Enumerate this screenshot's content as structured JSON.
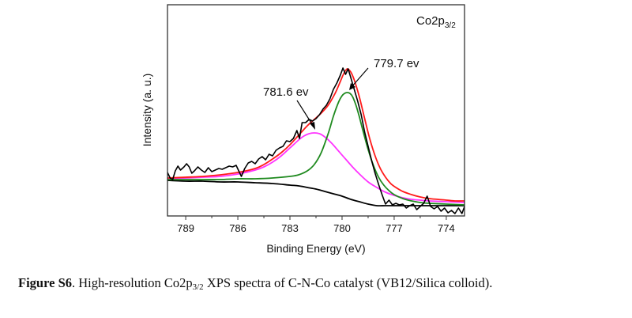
{
  "chart_data": {
    "type": "line",
    "title": "",
    "xlabel": "Binding Energy (eV)",
    "ylabel": "Intensity (a. u.)",
    "xlim": [
      790.05,
      772.95
    ],
    "x_reversed": true,
    "ylim": [
      0,
      267
    ],
    "x_ticks": [
      789,
      786,
      783,
      780,
      777,
      774
    ],
    "x_minor_ticks": [
      787.5,
      784.5,
      781.5,
      778.5,
      775.5
    ],
    "y_ticks_labeled": false,
    "grid": false,
    "legend": null,
    "panel_label": {
      "main": "Co2p",
      "sub": "3/2",
      "position": "top-right"
    },
    "annotations": [
      {
        "text": "781.6 ev",
        "x": 781.6,
        "target": "fit-peak-1"
      },
      {
        "text": "779.7 ev",
        "x": 779.7,
        "target": "fit-peak-2"
      }
    ],
    "series": [
      {
        "name": "experimental",
        "color": "#000000",
        "x": [
          790.05,
          789.9,
          789.75,
          789.6,
          789.45,
          789.3,
          789.1,
          788.95,
          788.8,
          788.65,
          788.5,
          788.3,
          788.1,
          787.9,
          787.7,
          787.5,
          787.3,
          787.1,
          786.9,
          786.7,
          786.5,
          786.3,
          786.1,
          785.95,
          785.8,
          785.6,
          785.4,
          785.2,
          785.0,
          784.8,
          784.6,
          784.4,
          784.2,
          784.0,
          783.8,
          783.6,
          783.4,
          783.2,
          783.0,
          782.8,
          782.6,
          782.45,
          782.3,
          782.1,
          781.9,
          781.7,
          781.5,
          781.3,
          781.1,
          780.9,
          780.7,
          780.5,
          780.3,
          780.1,
          779.95,
          779.8,
          779.65,
          779.5,
          779.3,
          779.1,
          778.9,
          778.7,
          778.5,
          778.3,
          778.1,
          777.9,
          777.7,
          777.5,
          777.3,
          777.1,
          776.9,
          776.7,
          776.5,
          776.3,
          776.1,
          775.9,
          775.7,
          775.5,
          775.3,
          775.1,
          774.9,
          774.7,
          774.5,
          774.3,
          774.1,
          773.9,
          773.7,
          773.5,
          773.3,
          773.1,
          772.95
        ],
        "y": [
          55,
          48,
          46,
          57,
          63,
          58,
          62,
          66,
          62,
          54,
          57,
          62,
          58,
          55,
          61,
          56,
          58,
          60,
          59,
          61,
          63,
          62,
          64,
          57,
          50,
          60,
          67,
          69,
          66,
          72,
          75,
          71,
          78,
          76,
          83,
          86,
          88,
          95,
          94,
          98,
          108,
          98,
          118,
          118,
          122,
          120,
          123,
          128,
          135,
          140,
          148,
          160,
          168,
          178,
          187,
          179,
          186,
          175,
          160,
          145,
          128,
          106,
          88,
          70,
          54,
          40,
          27,
          15,
          20,
          14,
          16,
          14,
          15,
          10,
          13,
          15,
          8,
          12,
          16,
          25,
          12,
          9,
          12,
          6,
          10,
          4,
          7,
          3,
          10,
          3,
          12
        ]
      },
      {
        "name": "fit-envelope",
        "color": "#ff1a1a",
        "x": [
          790.05,
          789,
          788,
          787,
          786,
          785,
          784.5,
          784,
          783.5,
          783,
          782.5,
          782,
          781.6,
          781.2,
          780.8,
          780.4,
          780.1,
          779.9,
          779.7,
          779.5,
          779.3,
          779.0,
          778.7,
          778.4,
          778.1,
          777.8,
          777.5,
          777.2,
          776.9,
          776.5,
          776,
          775.5,
          775,
          774.5,
          774,
          773.5,
          772.95
        ],
        "y": [
          48,
          49,
          50,
          52,
          55,
          60,
          65,
          72,
          80,
          90,
          102,
          114,
          122,
          130,
          140,
          155,
          170,
          180,
          186,
          182,
          172,
          150,
          123,
          97,
          76,
          60,
          49,
          41,
          36,
          31,
          27,
          24,
          22,
          21,
          20,
          19,
          19
        ]
      },
      {
        "name": "fit-peak-1",
        "center_eV": 781.6,
        "color": "#ff33ff",
        "x": [
          790.05,
          789,
          788,
          787,
          786,
          785,
          784.5,
          784,
          783.5,
          783,
          782.5,
          782.2,
          781.9,
          781.6,
          781.3,
          781.0,
          780.6,
          780.2,
          779.8,
          779.4,
          779.0,
          778.5,
          778.0,
          777.5,
          777.0,
          776.5,
          776,
          775.5,
          775,
          774,
          772.95
        ],
        "y": [
          47,
          48,
          49,
          50,
          53,
          58,
          62,
          68,
          76,
          86,
          96,
          101,
          104,
          105,
          104,
          100,
          92,
          82,
          72,
          62,
          53,
          43,
          36,
          30,
          26,
          23,
          21,
          20,
          19,
          18,
          17
        ]
      },
      {
        "name": "fit-peak-2",
        "center_eV": 779.7,
        "color": "#1f8a1f",
        "x": [
          790.05,
          789,
          788,
          787,
          786,
          785,
          784,
          783,
          782.5,
          782,
          781.6,
          781.2,
          780.8,
          780.5,
          780.2,
          780.0,
          779.85,
          779.7,
          779.55,
          779.4,
          779.2,
          779.0,
          778.8,
          778.5,
          778.2,
          777.9,
          777.6,
          777.3,
          777,
          776.5,
          776,
          775.5,
          775,
          774,
          772.95
        ],
        "y": [
          46,
          46,
          46,
          46,
          47,
          47,
          48,
          50,
          52,
          57,
          65,
          80,
          104,
          126,
          144,
          152,
          155,
          156,
          155,
          151,
          140,
          125,
          108,
          84,
          64,
          49,
          39,
          32,
          27,
          22,
          19,
          17,
          16,
          15,
          14
        ]
      },
      {
        "name": "background",
        "color": "#000000",
        "x": [
          790.05,
          789,
          788,
          787,
          786,
          785,
          784,
          783,
          782.5,
          782,
          781.5,
          781,
          780.5,
          780,
          779.5,
          779,
          778.5,
          778,
          777.5,
          777,
          776,
          775,
          774,
          772.95
        ],
        "y": [
          45,
          44,
          44,
          43,
          43,
          42,
          41,
          39,
          38,
          36,
          34,
          31,
          28,
          25,
          21,
          18,
          15,
          13,
          13,
          13,
          13,
          13,
          13,
          13
        ]
      }
    ]
  },
  "caption": {
    "label": "Figure S6",
    "text_before": ". High-resolution Co2p",
    "sub": "3/2",
    "text_after": " XPS spectra of C-N-Co catalyst (VB12/Silica colloid)."
  }
}
